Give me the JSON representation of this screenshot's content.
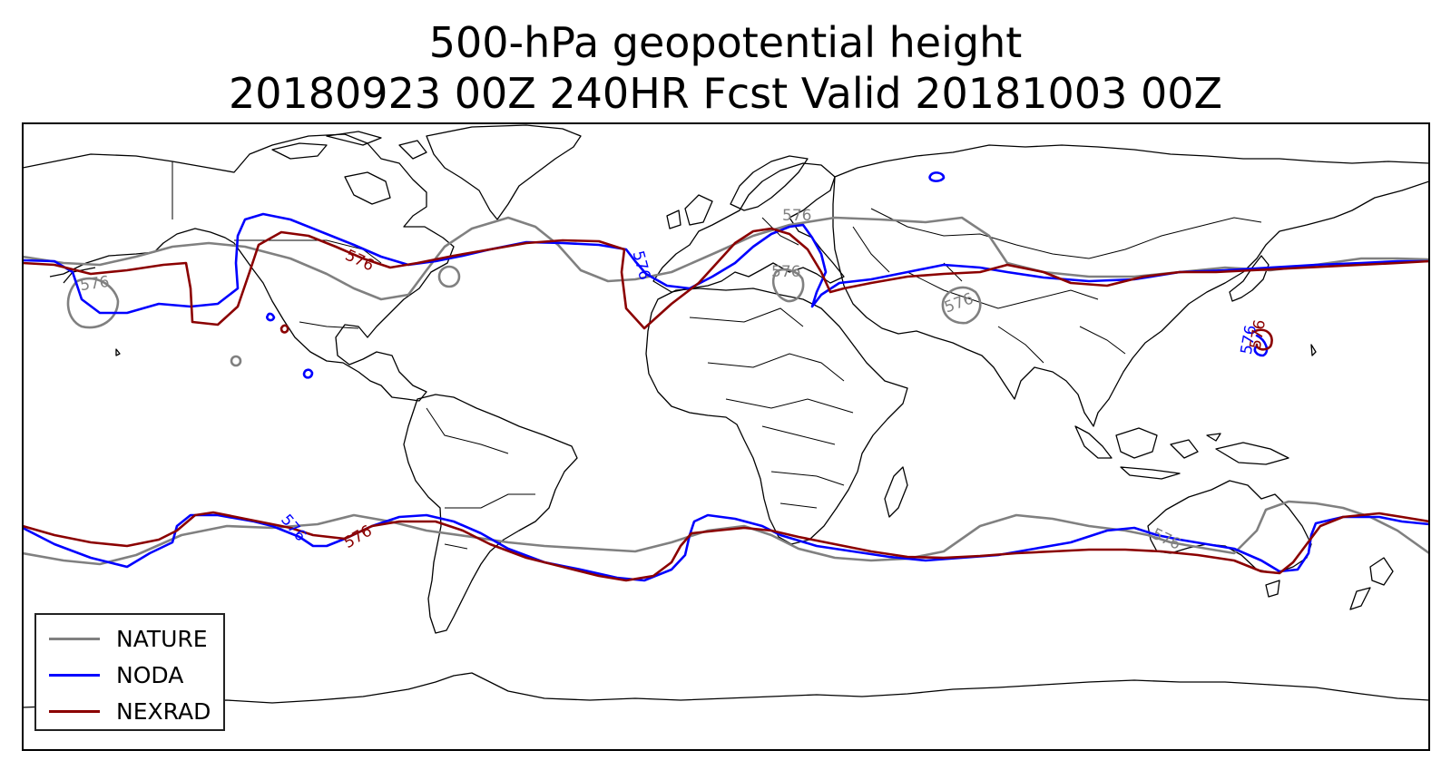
{
  "title": {
    "line1": "500-hPa geopotential height",
    "line2": "20180923 00Z 240HR Fcst Valid 20181003 00Z"
  },
  "contour_level": "576",
  "contour_labels": [
    "576",
    "576",
    "576",
    "576",
    "576",
    "576",
    "576",
    "576",
    "576",
    "576",
    "576",
    "576"
  ],
  "legend": [
    {
      "label": "NATURE",
      "color": "#808080"
    },
    {
      "label": "NODA",
      "color": "#0000ff"
    },
    {
      "label": "NEXRAD",
      "color": "#8b0000"
    }
  ],
  "map": {
    "projection": "PlateCarree",
    "extent": "global",
    "features": [
      "coastlines",
      "country borders"
    ]
  }
}
